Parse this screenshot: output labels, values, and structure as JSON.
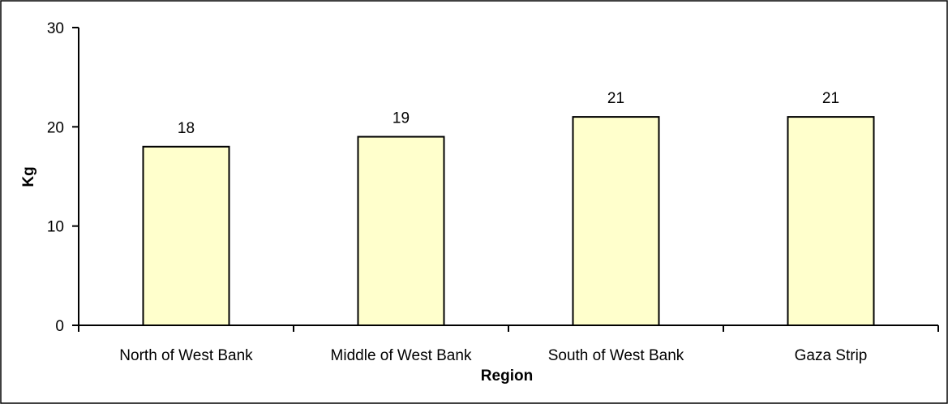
{
  "chart_data": {
    "type": "bar",
    "title": "",
    "xlabel": "Region",
    "ylabel": "Kg",
    "categories": [
      "North of West Bank",
      "Middle of West Bank",
      "South of West Bank",
      "Gaza Strip"
    ],
    "values": [
      18,
      19,
      21,
      21
    ],
    "data_labels": [
      "18",
      "19",
      "21",
      "21"
    ],
    "ylim": [
      0,
      30
    ],
    "yticks": [
      0,
      10,
      20,
      30
    ],
    "grid": false,
    "legend": "none",
    "bar_fill": "#ffffcc",
    "bar_stroke": "#000000"
  }
}
